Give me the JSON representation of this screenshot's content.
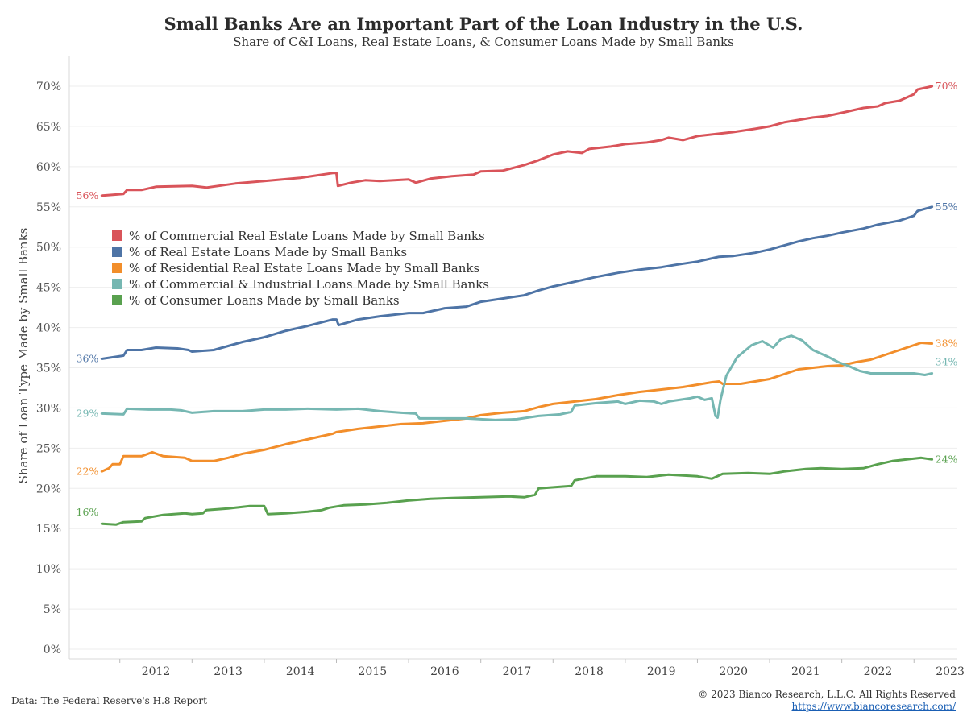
{
  "title": "Small Banks Are an Important Part of the Loan Industry in the U.S.",
  "subtitle": "Share of C&I Loans, Real Estate Loans, & Consumer Loans Made by Small Banks",
  "source_note": "Data: The Federal Reserve's H.8 Report",
  "copyright": "© 2023 Bianco Research, L.L.C. All Rights Reserved",
  "website": "https://www.biancoresearch.com/",
  "chart_data": {
    "type": "line",
    "title": "Small Banks Are an Important Part of the Loan Industry in the U.S.",
    "subtitle": "Share of C&I Loans, Real Estate Loans, & Consumer Loans Made by Small Banks",
    "xlabel": "",
    "ylabel": "Share of Loan Type Made by Small Banks",
    "xlim": [
      2011.3,
      2023.6
    ],
    "ylim": [
      0,
      70
    ],
    "yticks": [
      0,
      5,
      10,
      15,
      20,
      25,
      30,
      35,
      40,
      45,
      50,
      55,
      60,
      65,
      70
    ],
    "ytick_labels": [
      "0%",
      "5%",
      "10%",
      "15%",
      "20%",
      "25%",
      "30%",
      "35%",
      "40%",
      "45%",
      "50%",
      "55%",
      "60%",
      "65%",
      "70%"
    ],
    "xticks": [
      2012,
      2013,
      2014,
      2015,
      2016,
      2017,
      2018,
      2019,
      2020,
      2021,
      2022,
      2023
    ],
    "xtick_labels": [
      "2012",
      "2013",
      "2014",
      "2015",
      "2016",
      "2017",
      "2018",
      "2019",
      "2020",
      "2021",
      "2022",
      "2023"
    ],
    "grid": "horizontal",
    "legend_position": "left",
    "series": [
      {
        "name": "% of Commercial Real Estate Loans Made by Small Banks",
        "color": "#d9545a",
        "start_label": "56%",
        "end_label": "70%",
        "points": [
          [
            2011.75,
            56.4
          ],
          [
            2012.05,
            56.6
          ],
          [
            2012.1,
            57.1
          ],
          [
            2012.3,
            57.1
          ],
          [
            2012.5,
            57.5
          ],
          [
            2013.0,
            57.6
          ],
          [
            2013.2,
            57.4
          ],
          [
            2013.6,
            57.9
          ],
          [
            2014.0,
            58.2
          ],
          [
            2014.5,
            58.6
          ],
          [
            2014.95,
            59.2
          ],
          [
            2015.0,
            59.2
          ],
          [
            2015.02,
            57.6
          ],
          [
            2015.2,
            58.0
          ],
          [
            2015.4,
            58.3
          ],
          [
            2015.6,
            58.2
          ],
          [
            2016.0,
            58.4
          ],
          [
            2016.1,
            58.0
          ],
          [
            2016.3,
            58.5
          ],
          [
            2016.6,
            58.8
          ],
          [
            2016.9,
            59.0
          ],
          [
            2017.0,
            59.4
          ],
          [
            2017.3,
            59.5
          ],
          [
            2017.6,
            60.2
          ],
          [
            2017.8,
            60.8
          ],
          [
            2018.0,
            61.5
          ],
          [
            2018.2,
            61.9
          ],
          [
            2018.4,
            61.7
          ],
          [
            2018.5,
            62.2
          ],
          [
            2018.8,
            62.5
          ],
          [
            2019.0,
            62.8
          ],
          [
            2019.3,
            63.0
          ],
          [
            2019.5,
            63.3
          ],
          [
            2019.6,
            63.6
          ],
          [
            2019.8,
            63.3
          ],
          [
            2020.0,
            63.8
          ],
          [
            2020.3,
            64.1
          ],
          [
            2020.5,
            64.3
          ],
          [
            2020.8,
            64.7
          ],
          [
            2021.0,
            65.0
          ],
          [
            2021.2,
            65.5
          ],
          [
            2021.4,
            65.8
          ],
          [
            2021.6,
            66.1
          ],
          [
            2021.8,
            66.3
          ],
          [
            2021.95,
            66.6
          ],
          [
            2022.1,
            66.9
          ],
          [
            2022.3,
            67.3
          ],
          [
            2022.5,
            67.5
          ],
          [
            2022.6,
            67.9
          ],
          [
            2022.8,
            68.2
          ],
          [
            2023.0,
            69.0
          ],
          [
            2023.05,
            69.6
          ],
          [
            2023.25,
            70.0
          ]
        ]
      },
      {
        "name": "% of Real Estate Loans Made by Small Banks",
        "color": "#4e74a6",
        "start_label": "36%",
        "end_label": "55%",
        "points": [
          [
            2011.75,
            36.1
          ],
          [
            2012.05,
            36.5
          ],
          [
            2012.1,
            37.2
          ],
          [
            2012.3,
            37.2
          ],
          [
            2012.5,
            37.5
          ],
          [
            2012.8,
            37.4
          ],
          [
            2012.95,
            37.2
          ],
          [
            2013.0,
            37.0
          ],
          [
            2013.3,
            37.2
          ],
          [
            2013.5,
            37.7
          ],
          [
            2013.7,
            38.2
          ],
          [
            2014.0,
            38.8
          ],
          [
            2014.3,
            39.6
          ],
          [
            2014.6,
            40.2
          ],
          [
            2014.95,
            41.0
          ],
          [
            2015.0,
            41.0
          ],
          [
            2015.03,
            40.3
          ],
          [
            2015.3,
            41.0
          ],
          [
            2015.6,
            41.4
          ],
          [
            2016.0,
            41.8
          ],
          [
            2016.2,
            41.8
          ],
          [
            2016.5,
            42.4
          ],
          [
            2016.8,
            42.6
          ],
          [
            2017.0,
            43.2
          ],
          [
            2017.3,
            43.6
          ],
          [
            2017.6,
            44.0
          ],
          [
            2017.8,
            44.6
          ],
          [
            2018.0,
            45.1
          ],
          [
            2018.3,
            45.7
          ],
          [
            2018.6,
            46.3
          ],
          [
            2018.9,
            46.8
          ],
          [
            2019.2,
            47.2
          ],
          [
            2019.5,
            47.5
          ],
          [
            2019.7,
            47.8
          ],
          [
            2020.0,
            48.2
          ],
          [
            2020.3,
            48.8
          ],
          [
            2020.5,
            48.9
          ],
          [
            2020.8,
            49.3
          ],
          [
            2021.0,
            49.7
          ],
          [
            2021.2,
            50.2
          ],
          [
            2021.4,
            50.7
          ],
          [
            2021.6,
            51.1
          ],
          [
            2021.8,
            51.4
          ],
          [
            2022.0,
            51.8
          ],
          [
            2022.3,
            52.3
          ],
          [
            2022.5,
            52.8
          ],
          [
            2022.8,
            53.3
          ],
          [
            2023.0,
            53.9
          ],
          [
            2023.05,
            54.5
          ],
          [
            2023.25,
            55.0
          ]
        ]
      },
      {
        "name": "% of Residential Real Estate Loans Made by Small Banks",
        "color": "#f28e2b",
        "start_label": "22%",
        "end_label": "38%",
        "points": [
          [
            2011.75,
            22.1
          ],
          [
            2011.85,
            22.5
          ],
          [
            2011.9,
            23.0
          ],
          [
            2012.0,
            23.0
          ],
          [
            2012.05,
            24.0
          ],
          [
            2012.3,
            24.0
          ],
          [
            2012.45,
            24.5
          ],
          [
            2012.6,
            24.0
          ],
          [
            2012.9,
            23.8
          ],
          [
            2013.0,
            23.4
          ],
          [
            2013.3,
            23.4
          ],
          [
            2013.5,
            23.8
          ],
          [
            2013.7,
            24.3
          ],
          [
            2014.0,
            24.8
          ],
          [
            2014.3,
            25.5
          ],
          [
            2014.6,
            26.1
          ],
          [
            2014.95,
            26.8
          ],
          [
            2015.0,
            27.0
          ],
          [
            2015.3,
            27.4
          ],
          [
            2015.6,
            27.7
          ],
          [
            2015.9,
            28.0
          ],
          [
            2016.2,
            28.1
          ],
          [
            2016.5,
            28.4
          ],
          [
            2016.8,
            28.7
          ],
          [
            2017.0,
            29.1
          ],
          [
            2017.3,
            29.4
          ],
          [
            2017.6,
            29.6
          ],
          [
            2017.8,
            30.1
          ],
          [
            2018.0,
            30.5
          ],
          [
            2018.3,
            30.8
          ],
          [
            2018.6,
            31.1
          ],
          [
            2018.9,
            31.6
          ],
          [
            2019.2,
            32.0
          ],
          [
            2019.5,
            32.3
          ],
          [
            2019.8,
            32.6
          ],
          [
            2020.0,
            32.9
          ],
          [
            2020.2,
            33.2
          ],
          [
            2020.3,
            33.3
          ],
          [
            2020.35,
            33.0
          ],
          [
            2020.6,
            33.0
          ],
          [
            2020.8,
            33.3
          ],
          [
            2021.0,
            33.6
          ],
          [
            2021.2,
            34.2
          ],
          [
            2021.4,
            34.8
          ],
          [
            2021.6,
            35.0
          ],
          [
            2021.8,
            35.2
          ],
          [
            2022.0,
            35.3
          ],
          [
            2022.2,
            35.7
          ],
          [
            2022.4,
            36.0
          ],
          [
            2022.6,
            36.6
          ],
          [
            2022.8,
            37.2
          ],
          [
            2023.0,
            37.8
          ],
          [
            2023.1,
            38.1
          ],
          [
            2023.25,
            38.0
          ]
        ]
      },
      {
        "name": "% of Commercial & Industrial Loans Made by Small Banks",
        "color": "#76b7b2",
        "start_label": "29%",
        "end_label": "34%",
        "points": [
          [
            2011.75,
            29.3
          ],
          [
            2012.05,
            29.2
          ],
          [
            2012.1,
            29.9
          ],
          [
            2012.4,
            29.8
          ],
          [
            2012.7,
            29.8
          ],
          [
            2012.85,
            29.7
          ],
          [
            2013.0,
            29.4
          ],
          [
            2013.3,
            29.6
          ],
          [
            2013.7,
            29.6
          ],
          [
            2014.0,
            29.8
          ],
          [
            2014.3,
            29.8
          ],
          [
            2014.6,
            29.9
          ],
          [
            2015.0,
            29.8
          ],
          [
            2015.3,
            29.9
          ],
          [
            2015.6,
            29.6
          ],
          [
            2015.9,
            29.4
          ],
          [
            2016.1,
            29.3
          ],
          [
            2016.15,
            28.7
          ],
          [
            2016.5,
            28.7
          ],
          [
            2016.8,
            28.7
          ],
          [
            2017.2,
            28.5
          ],
          [
            2017.5,
            28.6
          ],
          [
            2017.8,
            29.0
          ],
          [
            2018.1,
            29.2
          ],
          [
            2018.25,
            29.5
          ],
          [
            2018.3,
            30.3
          ],
          [
            2018.6,
            30.6
          ],
          [
            2018.9,
            30.8
          ],
          [
            2019.0,
            30.5
          ],
          [
            2019.2,
            30.9
          ],
          [
            2019.4,
            30.8
          ],
          [
            2019.5,
            30.5
          ],
          [
            2019.6,
            30.8
          ],
          [
            2019.9,
            31.2
          ],
          [
            2020.0,
            31.4
          ],
          [
            2020.1,
            31.0
          ],
          [
            2020.2,
            31.2
          ],
          [
            2020.25,
            29.0
          ],
          [
            2020.28,
            28.8
          ],
          [
            2020.32,
            31.0
          ],
          [
            2020.4,
            34.0
          ],
          [
            2020.55,
            36.3
          ],
          [
            2020.75,
            37.8
          ],
          [
            2020.9,
            38.3
          ],
          [
            2021.05,
            37.5
          ],
          [
            2021.15,
            38.5
          ],
          [
            2021.3,
            39.0
          ],
          [
            2021.45,
            38.4
          ],
          [
            2021.6,
            37.2
          ],
          [
            2021.8,
            36.4
          ],
          [
            2021.95,
            35.7
          ],
          [
            2022.1,
            35.2
          ],
          [
            2022.25,
            34.6
          ],
          [
            2022.4,
            34.3
          ],
          [
            2022.6,
            34.3
          ],
          [
            2022.8,
            34.3
          ],
          [
            2023.0,
            34.3
          ],
          [
            2023.15,
            34.1
          ],
          [
            2023.25,
            34.3
          ]
        ]
      },
      {
        "name": "% of Consumer Loans Made by Small Banks",
        "color": "#59a14f",
        "start_label": "16%",
        "end_label": "24%",
        "points": [
          [
            2011.75,
            15.6
          ],
          [
            2011.95,
            15.5
          ],
          [
            2012.05,
            15.8
          ],
          [
            2012.3,
            15.9
          ],
          [
            2012.35,
            16.3
          ],
          [
            2012.6,
            16.7
          ],
          [
            2012.9,
            16.9
          ],
          [
            2013.0,
            16.8
          ],
          [
            2013.15,
            16.9
          ],
          [
            2013.2,
            17.3
          ],
          [
            2013.5,
            17.5
          ],
          [
            2013.8,
            17.8
          ],
          [
            2014.0,
            17.8
          ],
          [
            2014.05,
            16.8
          ],
          [
            2014.3,
            16.9
          ],
          [
            2014.6,
            17.1
          ],
          [
            2014.8,
            17.3
          ],
          [
            2014.9,
            17.6
          ],
          [
            2015.1,
            17.9
          ],
          [
            2015.4,
            18.0
          ],
          [
            2015.7,
            18.2
          ],
          [
            2016.0,
            18.5
          ],
          [
            2016.3,
            18.7
          ],
          [
            2016.6,
            18.8
          ],
          [
            2017.0,
            18.9
          ],
          [
            2017.4,
            19.0
          ],
          [
            2017.6,
            18.9
          ],
          [
            2017.75,
            19.2
          ],
          [
            2017.8,
            20.0
          ],
          [
            2018.1,
            20.2
          ],
          [
            2018.25,
            20.3
          ],
          [
            2018.3,
            21.0
          ],
          [
            2018.6,
            21.5
          ],
          [
            2019.0,
            21.5
          ],
          [
            2019.3,
            21.4
          ],
          [
            2019.6,
            21.7
          ],
          [
            2019.8,
            21.6
          ],
          [
            2020.0,
            21.5
          ],
          [
            2020.2,
            21.2
          ],
          [
            2020.35,
            21.8
          ],
          [
            2020.7,
            21.9
          ],
          [
            2021.0,
            21.8
          ],
          [
            2021.2,
            22.1
          ],
          [
            2021.5,
            22.4
          ],
          [
            2021.7,
            22.5
          ],
          [
            2022.0,
            22.4
          ],
          [
            2022.3,
            22.5
          ],
          [
            2022.5,
            23.0
          ],
          [
            2022.7,
            23.4
          ],
          [
            2022.9,
            23.6
          ],
          [
            2023.1,
            23.8
          ],
          [
            2023.25,
            23.6
          ]
        ]
      }
    ]
  }
}
